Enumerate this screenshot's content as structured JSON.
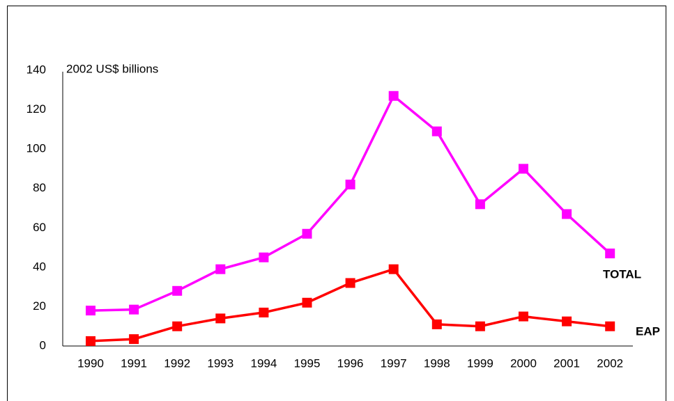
{
  "chart_data": {
    "type": "line",
    "y_label": "2002 US$ billions",
    "categories": [
      "1990",
      "1991",
      "1992",
      "1993",
      "1994",
      "1995",
      "1996",
      "1997",
      "1998",
      "1999",
      "2000",
      "2001",
      "2002"
    ],
    "series": [
      {
        "name": "TOTAL",
        "color": "#ff00ff",
        "values": [
          18,
          18.5,
          28,
          39,
          45,
          57,
          82,
          127,
          109,
          72,
          90,
          67,
          47
        ]
      },
      {
        "name": "EAP",
        "color": "#ff0000",
        "values": [
          2.5,
          3.5,
          10,
          14,
          17,
          22,
          32,
          39,
          11,
          10,
          15,
          12.5,
          10
        ]
      }
    ],
    "ylim": [
      0,
      140
    ],
    "yticks": [
      0,
      20,
      40,
      60,
      80,
      100,
      120,
      140
    ],
    "grid": false
  }
}
